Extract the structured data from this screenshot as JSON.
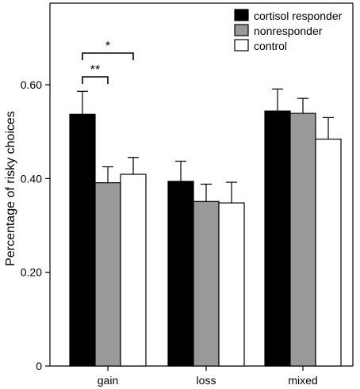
{
  "chart_data": {
    "type": "bar",
    "title": "",
    "xlabel": "",
    "ylabel": "Percentage of risky choices",
    "ylim": [
      0,
      0.65
    ],
    "yticks": [
      "0",
      "0.20",
      "0.40",
      "0.60"
    ],
    "ytick_values": [
      0,
      0.2,
      0.4,
      0.6
    ],
    "categories": [
      "gain",
      "loss",
      "mixed"
    ],
    "series": [
      {
        "name": "cortisol responder",
        "color": "#000000",
        "values": [
          0.537,
          0.394,
          0.544
        ],
        "errors": [
          0.049,
          0.043,
          0.047
        ]
      },
      {
        "name": "nonresponder",
        "color": "#999999",
        "values": [
          0.391,
          0.351,
          0.539
        ],
        "errors": [
          0.034,
          0.037,
          0.032
        ]
      },
      {
        "name": "control",
        "color": "#ffffff",
        "values": [
          0.409,
          0.348,
          0.484
        ],
        "errors": [
          0.036,
          0.044,
          0.046
        ]
      }
    ],
    "legend_position": "top-right",
    "grid": false,
    "significance": [
      {
        "label": "**",
        "category": "gain",
        "from_series": 0,
        "to_series": 1
      },
      {
        "label": "*",
        "category": "gain",
        "from_series": 0,
        "to_series": 2
      }
    ]
  }
}
